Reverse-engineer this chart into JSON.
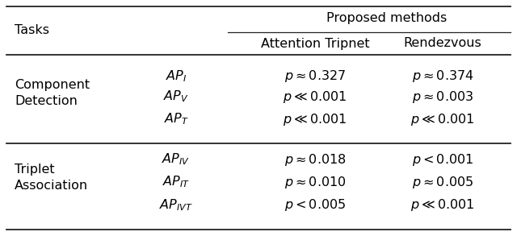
{
  "title": "Proposed methods",
  "col_headers": [
    "Attention Tripnet",
    "Rendezvous"
  ],
  "row_group1_label": "Component\nDetection",
  "row_group2_label": "Triplet\nAssociation",
  "row_group1_metrics": [
    "$AP_I$",
    "$AP_V$",
    "$AP_T$"
  ],
  "row_group2_metrics": [
    "$AP_{IV}$",
    "$AP_{IT}$",
    "$AP_{IVT}$"
  ],
  "row_group1_col1": [
    "$p \\approx 0.327$",
    "$p \\ll 0.001$",
    "$p \\ll 0.001$"
  ],
  "row_group1_col2": [
    "$p \\approx 0.374$",
    "$p \\approx 0.003$",
    "$p \\ll 0.001$"
  ],
  "row_group2_col1": [
    "$p \\approx 0.018$",
    "$p \\approx 0.010$",
    "$p < 0.005$"
  ],
  "row_group2_col2": [
    "$p < 0.001$",
    "$p \\approx 0.005$",
    "$p \\ll 0.001$"
  ],
  "tasks_label": "Tasks",
  "bg_color": "#ffffff",
  "text_color": "#000000",
  "font_size": 11.5,
  "line_color": "#222222"
}
